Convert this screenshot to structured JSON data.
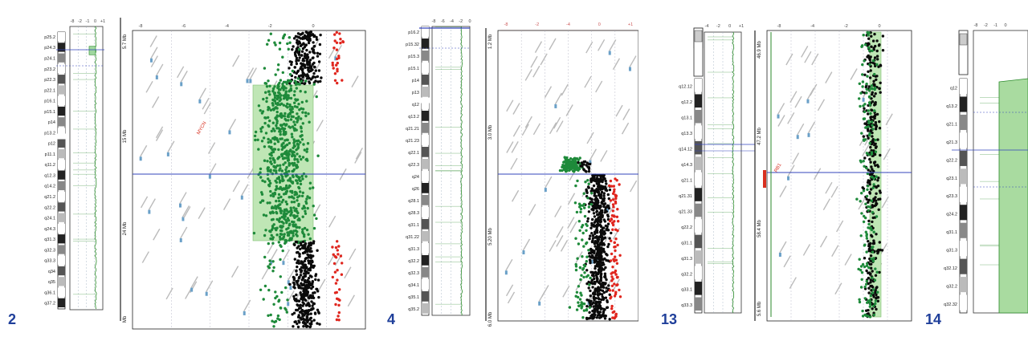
{
  "chart_data": [
    {
      "type": "scatter",
      "chromosome": "2",
      "ideogram_bands": [
        "p25.2",
        "p24.3",
        "p24.1",
        "p23.2",
        "p22.3",
        "p22.1",
        "p16.1",
        "p15.1",
        "p14",
        "p13.2",
        "p12",
        "p11.1",
        "q11.2",
        "q12.3",
        "q14.2",
        "q21.2",
        "q22.2",
        "q24.1",
        "q24.3",
        "q31.3",
        "q32.3",
        "q33.3",
        "q34",
        "q35",
        "q36.1",
        "q37.2"
      ],
      "profile_ticks": [
        "-8",
        "-2",
        "-1",
        "0",
        "+1"
      ],
      "detail_ticks": [
        "-8",
        "-6",
        "-4",
        "-2",
        "0"
      ],
      "mb_labels": [
        "5.7 Mb",
        "15 Mb",
        "24 Mb",
        "Mb"
      ],
      "gene_label_red": "MYCN",
      "aberration": {
        "start_frac": 0.18,
        "end_frac": 0.7,
        "type": "loss"
      }
    },
    {
      "type": "scatter",
      "chromosome": "4",
      "ideogram_bands": [
        "p16.2",
        "p15.32",
        "p15.3",
        "p15.1",
        "p14",
        "p13",
        "q12",
        "q13.2",
        "q21.21",
        "q21.23",
        "q22.1",
        "q22.3",
        "q24",
        "q26",
        "q28.1",
        "q28.3",
        "q31.1",
        "q31.22",
        "q31.3",
        "q32.2",
        "q32.3",
        "q34.1",
        "q35.1",
        "q35.2"
      ],
      "profile_ticks": [
        "-8",
        "-6",
        "-4",
        "-2",
        "0"
      ],
      "detail_ticks": [
        "-8",
        "-2",
        "-4",
        "0",
        "+1"
      ],
      "mb_labels": [
        "1.2 Mb",
        "3.0 Mb",
        "5.20 Mb",
        "6.0 Mb"
      ],
      "aberration": {
        "start_frac": 0.4,
        "end_frac": 0.47,
        "type": "loss"
      }
    },
    {
      "type": "scatter",
      "chromosome": "13",
      "ideogram_bands": [
        "q12.12",
        "q12.2",
        "q13.1",
        "q13.3",
        "q14.12",
        "q14.3",
        "q21.1",
        "q21.31",
        "q21.33",
        "q22.2",
        "q31.1",
        "q31.3",
        "q32.2",
        "q33.1",
        "q33.3"
      ],
      "profile_ticks": [
        "-4",
        "-2",
        "0",
        "+1"
      ],
      "detail_ticks": [
        "-8",
        "-4",
        "-2",
        "0"
      ],
      "mb_labels": [
        "46.9 Mb",
        "47.2 Mb",
        "58.4 Mb",
        "5.6 Mb"
      ],
      "gene_label_red": "RB1",
      "aberration": {
        "start_frac": 0.0,
        "end_frac": 1.0,
        "type": "loss"
      }
    },
    {
      "type": "scatter",
      "chromosome": "14",
      "ideogram_bands": [
        "q12",
        "q13.2",
        "q21.1",
        "q21.3",
        "q22.2",
        "q23.1",
        "q23.3",
        "q24.2",
        "q31.1",
        "q31.3",
        "q32.12",
        "q32.2",
        "q32.32"
      ],
      "profile_ticks": [
        "-8",
        "-2",
        "-1",
        "0"
      ],
      "aberration": {
        "start_frac": 0.0,
        "end_frac": 1.0,
        "type": "loss"
      }
    }
  ]
}
